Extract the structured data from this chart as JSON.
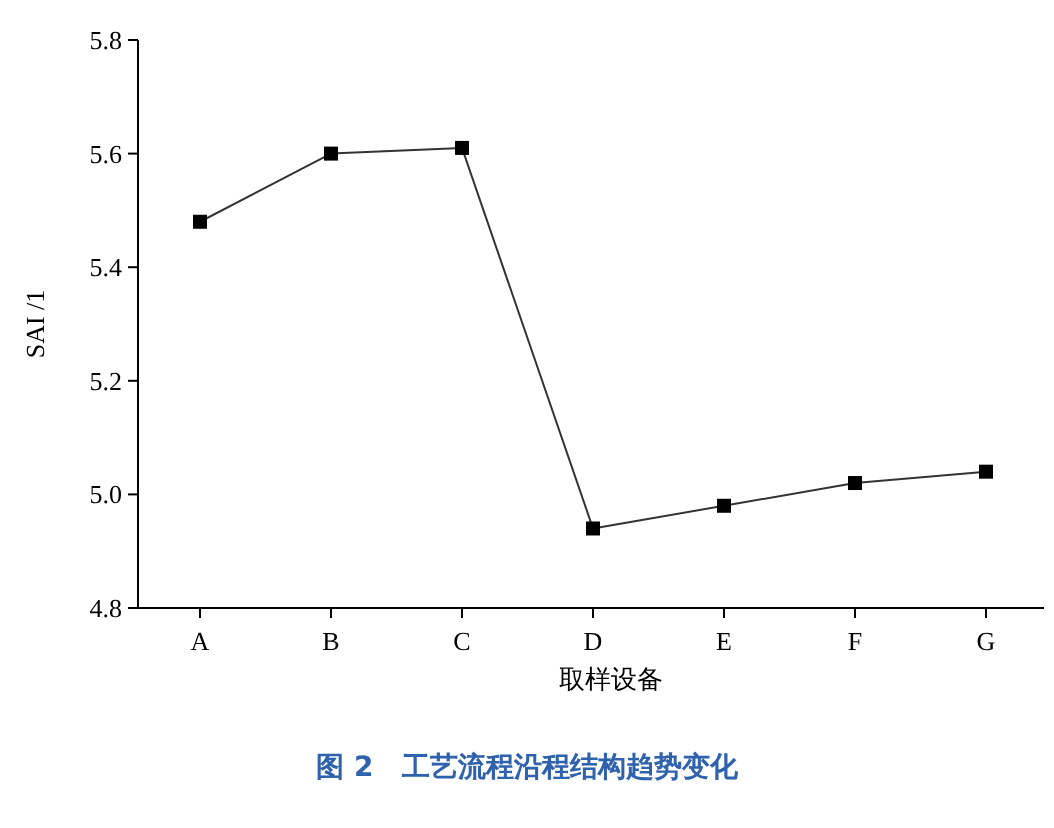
{
  "chart_data": {
    "type": "line",
    "title": "图 2　工艺流程沿程结构趋势变化",
    "xlabel": "取样设备",
    "ylabel": "SAI /1",
    "categories": [
      "A",
      "B",
      "C",
      "D",
      "E",
      "F",
      "G"
    ],
    "series": [
      {
        "color": "#000000",
        "values": [
          5.48,
          5.6,
          5.61,
          4.94,
          4.98,
          5.02,
          5.04
        ]
      }
    ],
    "ylim": [
      4.8,
      5.8
    ],
    "yticks": [
      4.8,
      {
        "value": 5.0,
        "label": "5.0"
      },
      5.2,
      5.4,
      5.6,
      5.8
    ],
    "marker": "square",
    "line_style": "solid"
  }
}
